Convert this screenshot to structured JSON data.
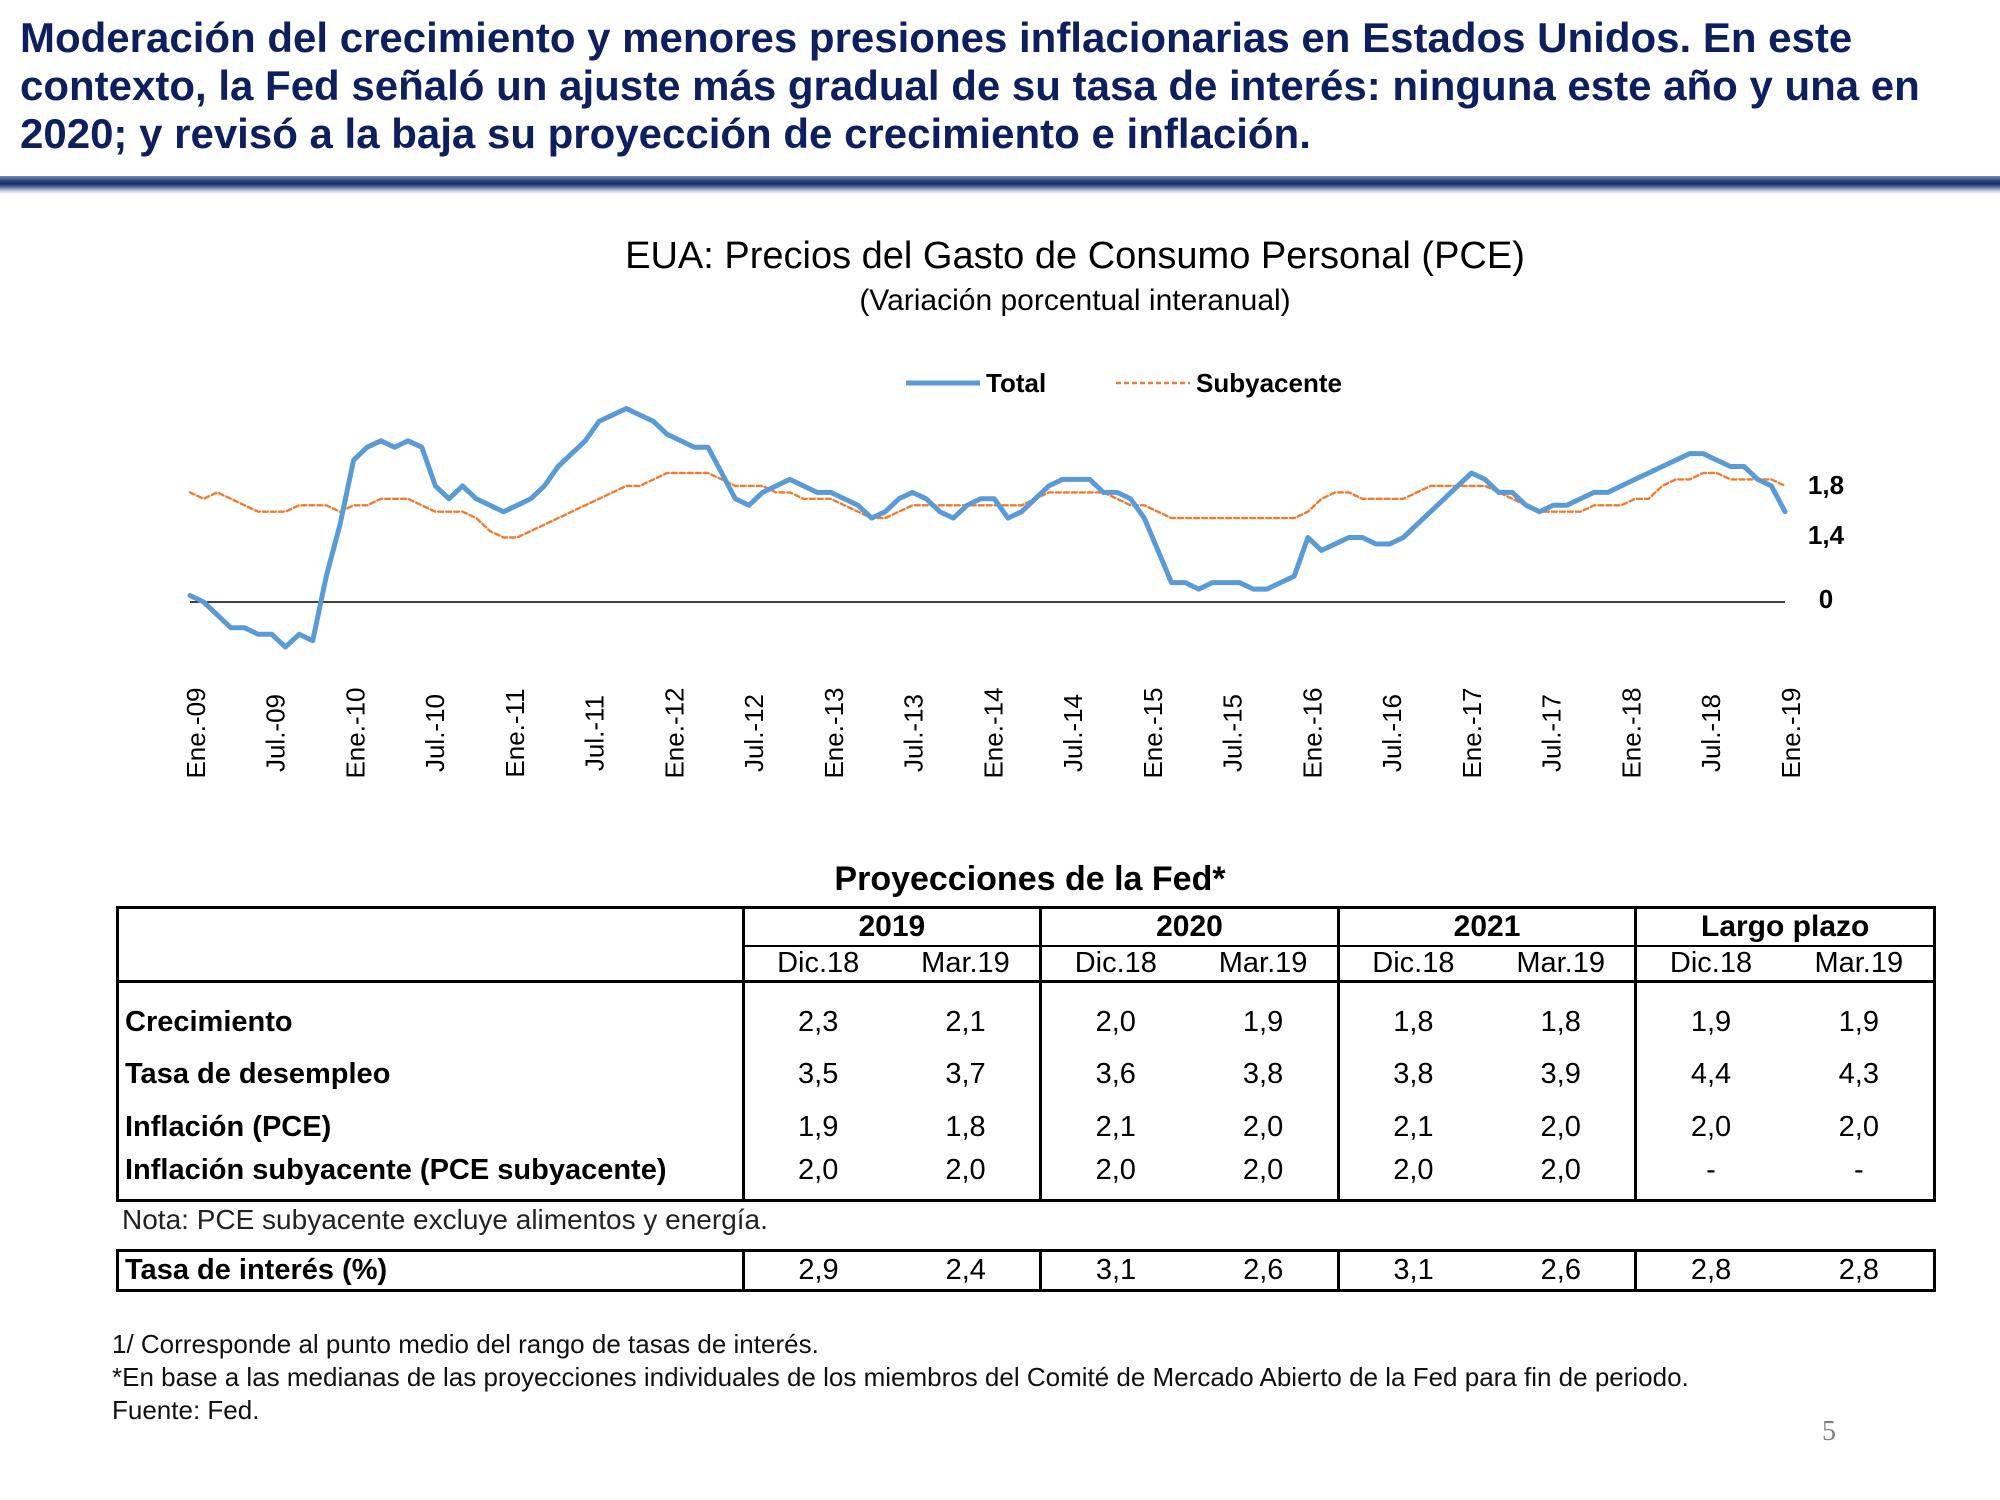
{
  "headline": "Moderación del crecimiento y menores presiones inflacionarias en Estados Unidos. En este contexto, la Fed señaló un ajuste más gradual de su tasa de interés: ninguna este año y una en 2020; y revisó a la baja su proyección de crecimiento e inflación.",
  "chart_data": {
    "type": "line",
    "title": "EUA: Precios del Gasto de Consumo Personal (PCE)",
    "subtitle": "(Variación porcentual interanual)",
    "xlabel": "",
    "ylabel": "",
    "ylim": [
      -1.5,
      3.6
    ],
    "grid": false,
    "legend_position": "top-center",
    "x_tick_labels": [
      "Ene.-09",
      "Jul.-09",
      "Ene.-10",
      "Jul.-10",
      "Ene.-11",
      "Jul.-11",
      "Ene.-12",
      "Jul.-12",
      "Ene.-13",
      "Jul.-13",
      "Ene.-14",
      "Jul.-14",
      "Ene.-15",
      "Jul.-15",
      "Ene.-16",
      "Jul.-16",
      "Ene.-17",
      "Jul.-17",
      "Ene.-18",
      "Jul.-18",
      "Ene.-19"
    ],
    "y_annotations": [
      {
        "label": "1,8",
        "value": 1.8
      },
      {
        "label": "1,4",
        "value": 1.4
      },
      {
        "label": "0",
        "value": 0
      }
    ],
    "series": [
      {
        "name": "Total",
        "color": "#5b9bd5",
        "style": "solid",
        "values": [
          0.1,
          0.0,
          -0.2,
          -0.4,
          -0.4,
          -0.5,
          -0.5,
          -0.7,
          -0.5,
          -0.6,
          0.4,
          1.2,
          2.2,
          2.4,
          2.5,
          2.4,
          2.5,
          2.4,
          1.8,
          1.6,
          1.8,
          1.6,
          1.5,
          1.4,
          1.5,
          1.6,
          1.8,
          2.1,
          2.3,
          2.5,
          2.8,
          2.9,
          3.0,
          2.9,
          2.8,
          2.6,
          2.5,
          2.4,
          2.4,
          2.0,
          1.6,
          1.5,
          1.7,
          1.8,
          1.9,
          1.8,
          1.7,
          1.7,
          1.6,
          1.5,
          1.3,
          1.4,
          1.6,
          1.7,
          1.6,
          1.4,
          1.3,
          1.5,
          1.6,
          1.6,
          1.3,
          1.4,
          1.6,
          1.8,
          1.9,
          1.9,
          1.9,
          1.7,
          1.7,
          1.6,
          1.3,
          0.8,
          0.3,
          0.3,
          0.2,
          0.3,
          0.3,
          0.3,
          0.2,
          0.2,
          0.3,
          0.4,
          1.0,
          0.8,
          0.9,
          1.0,
          1.0,
          0.9,
          0.9,
          1.0,
          1.2,
          1.4,
          1.6,
          1.8,
          2.0,
          1.9,
          1.7,
          1.7,
          1.5,
          1.4,
          1.5,
          1.5,
          1.6,
          1.7,
          1.7,
          1.8,
          1.9,
          2.0,
          2.1,
          2.2,
          2.3,
          2.3,
          2.2,
          2.1,
          2.1,
          1.9,
          1.8,
          1.4
        ],
        "subtitle_note": ""
      },
      {
        "name": "Subyacente",
        "color": "#ed7d31",
        "style": "dashed",
        "values": [
          1.7,
          1.6,
          1.7,
          1.6,
          1.5,
          1.4,
          1.4,
          1.4,
          1.5,
          1.5,
          1.5,
          1.4,
          1.5,
          1.5,
          1.6,
          1.6,
          1.6,
          1.5,
          1.4,
          1.4,
          1.4,
          1.3,
          1.1,
          1.0,
          1.0,
          1.1,
          1.2,
          1.3,
          1.4,
          1.5,
          1.6,
          1.7,
          1.8,
          1.8,
          1.9,
          2.0,
          2.0,
          2.0,
          2.0,
          1.9,
          1.8,
          1.8,
          1.8,
          1.7,
          1.7,
          1.6,
          1.6,
          1.6,
          1.5,
          1.4,
          1.3,
          1.3,
          1.4,
          1.5,
          1.5,
          1.5,
          1.5,
          1.5,
          1.5,
          1.5,
          1.5,
          1.5,
          1.6,
          1.7,
          1.7,
          1.7,
          1.7,
          1.7,
          1.6,
          1.5,
          1.5,
          1.4,
          1.3,
          1.3,
          1.3,
          1.3,
          1.3,
          1.3,
          1.3,
          1.3,
          1.3,
          1.3,
          1.4,
          1.6,
          1.7,
          1.7,
          1.6,
          1.6,
          1.6,
          1.6,
          1.7,
          1.8,
          1.8,
          1.8,
          1.8,
          1.8,
          1.7,
          1.6,
          1.5,
          1.4,
          1.4,
          1.4,
          1.4,
          1.5,
          1.5,
          1.5,
          1.6,
          1.6,
          1.8,
          1.9,
          1.9,
          2.0,
          2.0,
          1.9,
          1.9,
          1.9,
          1.9,
          1.8
        ]
      }
    ]
  },
  "projections": {
    "title": "Proyecciones de la Fed*",
    "years": [
      "2019",
      "2020",
      "2021",
      "Largo plazo"
    ],
    "sub_headers": [
      "Dic.18",
      "Mar.19",
      "Dic.18",
      "Mar.19",
      "Dic.18",
      "Mar.19",
      "Dic.18",
      "Mar.19"
    ],
    "rows": [
      {
        "label": "Crecimiento",
        "values": [
          "2,3",
          "2,1",
          "2,0",
          "1,9",
          "1,8",
          "1,8",
          "1,9",
          "1,9"
        ]
      },
      {
        "label": "Tasa de desempleo",
        "values": [
          "3,5",
          "3,7",
          "3,6",
          "3,8",
          "3,8",
          "3,9",
          "4,4",
          "4,3"
        ]
      },
      {
        "label": "Inflación (PCE)",
        "values": [
          "1,9",
          "1,8",
          "2,1",
          "2,0",
          "2,1",
          "2,0",
          "2,0",
          "2,0"
        ]
      },
      {
        "label": "Inflación subyacente (PCE subyacente)",
        "values": [
          "2,0",
          "2,0",
          "2,0",
          "2,0",
          "2,0",
          "2,0",
          "-",
          "-"
        ]
      }
    ],
    "note": "Nota: PCE subyacente excluye alimentos y energía.",
    "interest": {
      "label": "Tasa de interés (%)",
      "values": [
        "2,9",
        "2,4",
        "3,1",
        "2,6",
        "3,1",
        "2,6",
        "2,8",
        "2,8"
      ]
    }
  },
  "footnotes": [
    "1/ Corresponde al punto medio del rango de tasas de interés.",
    "*En base a las medianas de las proyecciones individuales de los miembros del Comité de Mercado Abierto de la Fed para fin de periodo.",
    "Fuente: Fed."
  ],
  "page_number": "5"
}
